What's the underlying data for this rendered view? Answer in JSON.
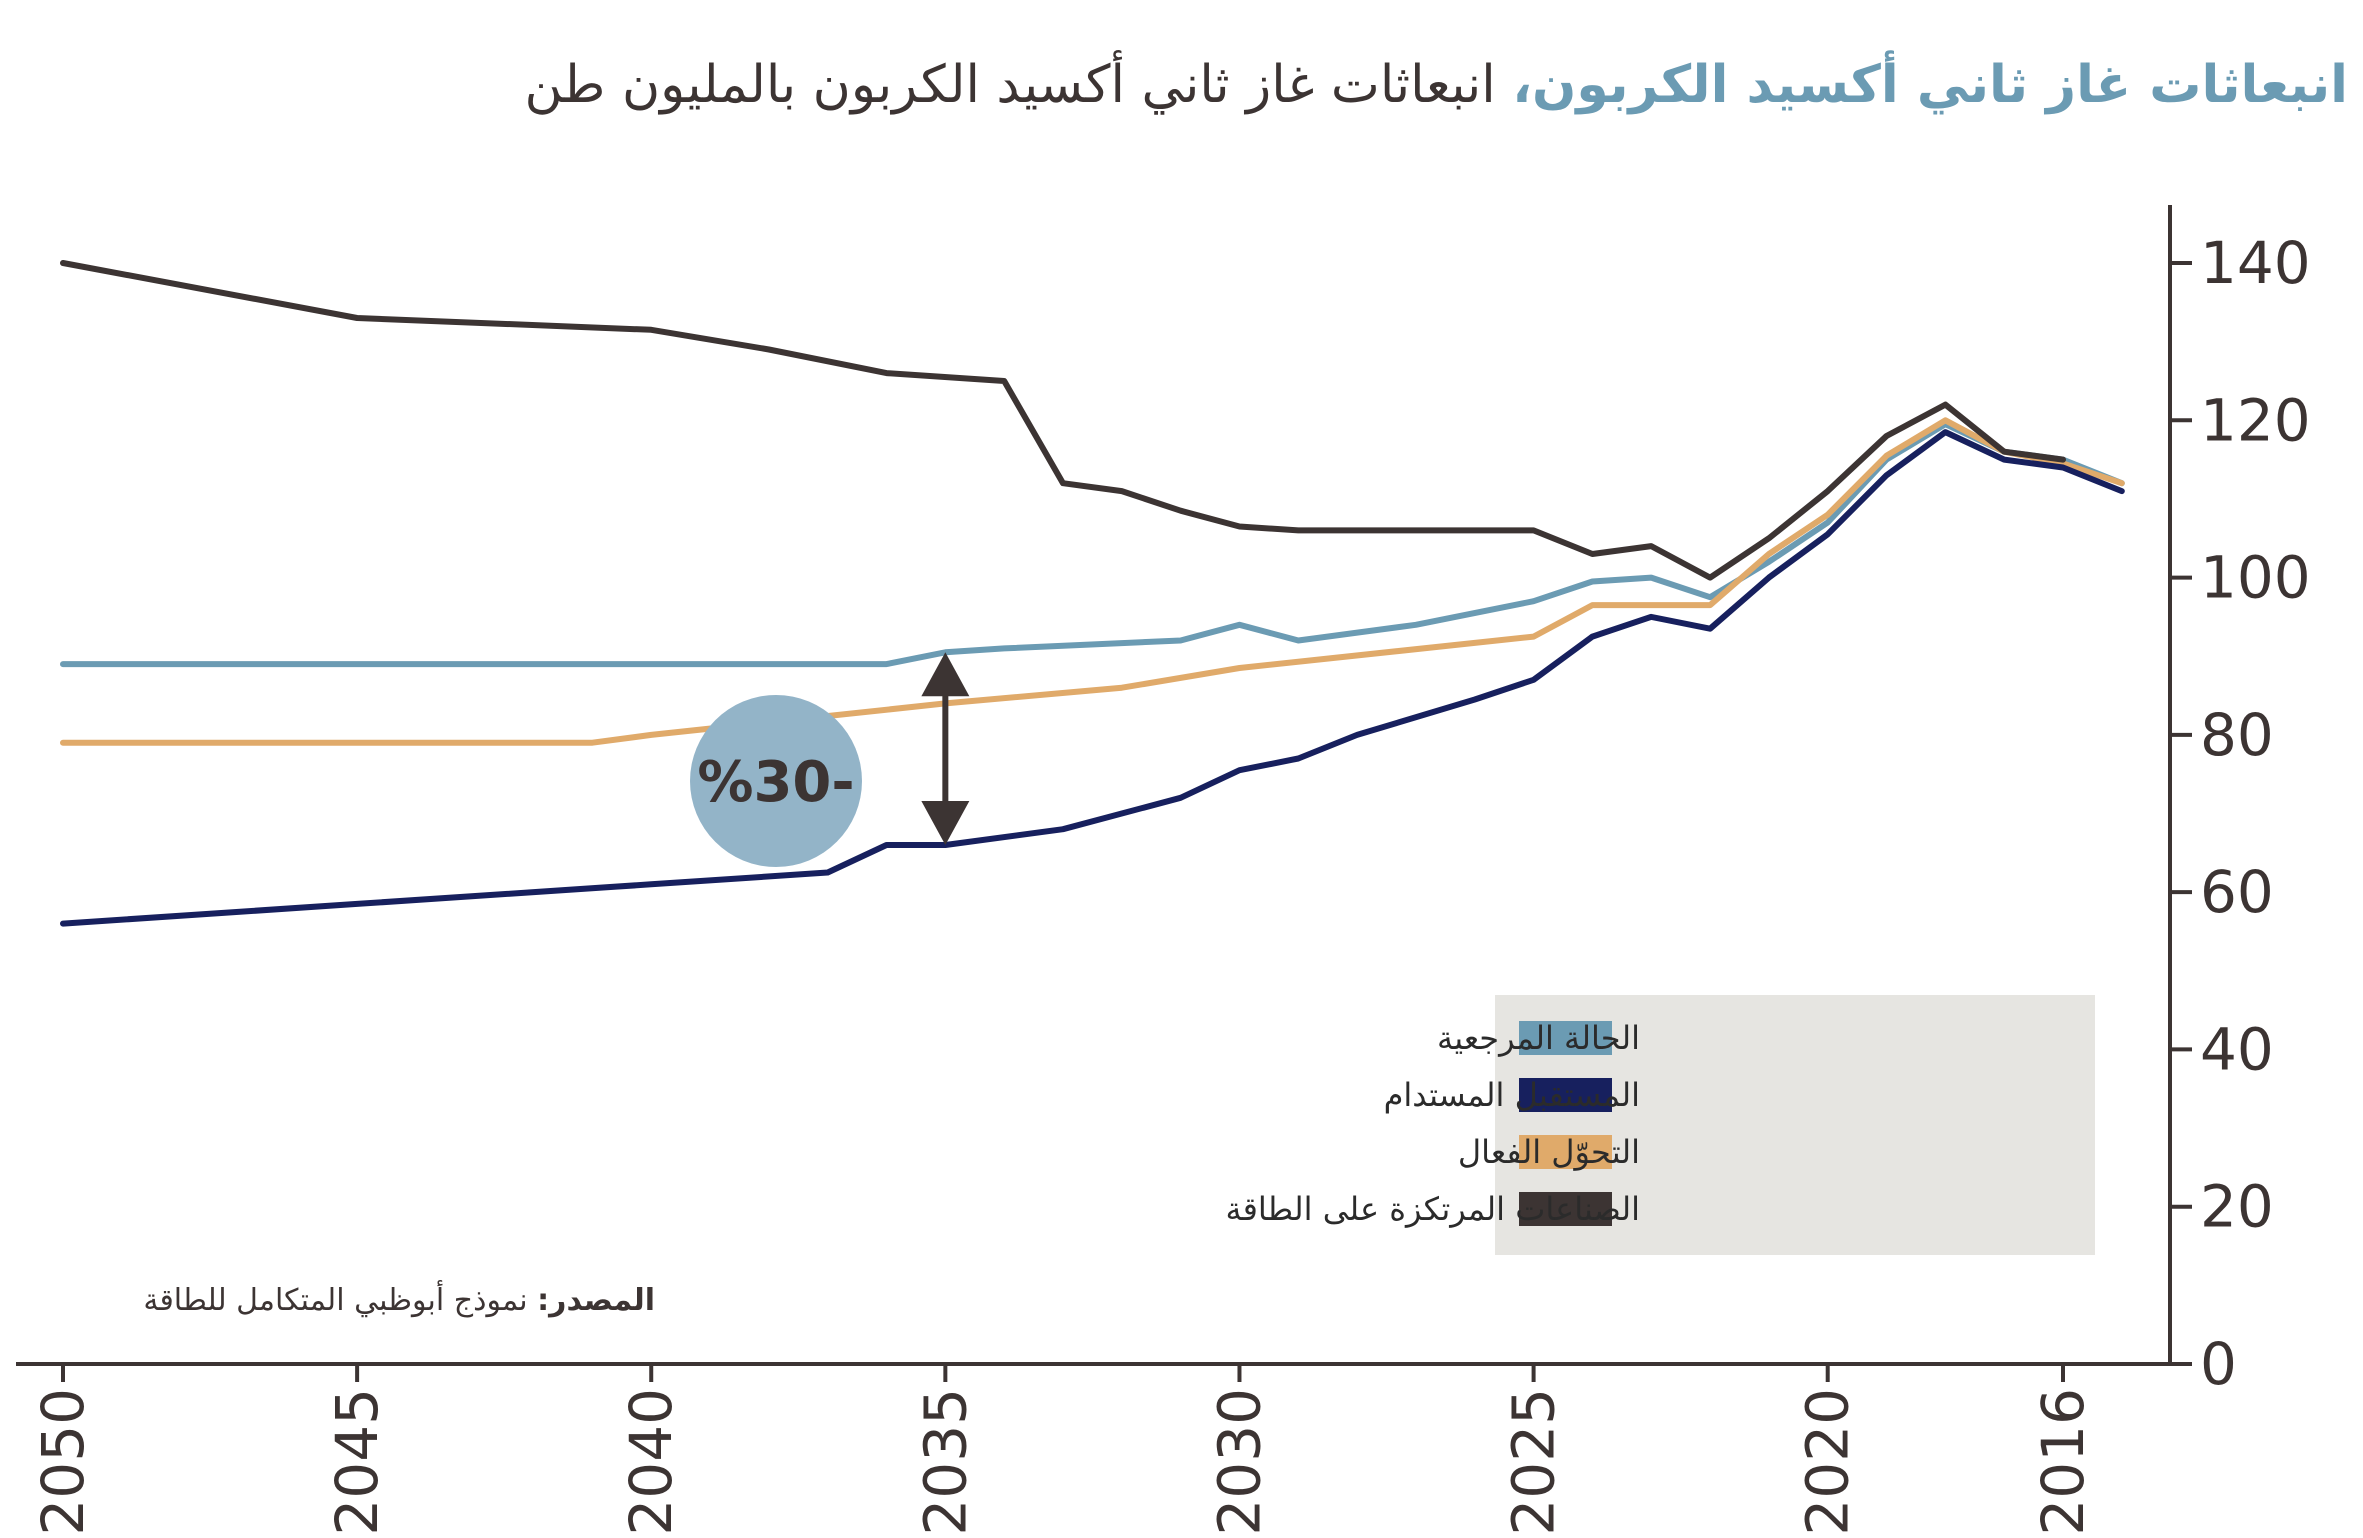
{
  "header": {
    "title_highlight": "انبعاثات غاز ثاني أكسيد الكربون،",
    "title_rest": " انبعاثات غاز ثاني أكسيد الكربون بالمليون طن"
  },
  "source": {
    "label": "المصدر:",
    "text": " نموذج أبوظبي المتكامل للطاقة"
  },
  "annotation": {
    "text": "%30-"
  },
  "colors": {
    "reference": "#6b9bb3",
    "sustainable": "#17205e",
    "transition": "#e0aa6a",
    "energy_intensive": "#3c3433",
    "badge": "#93b4c8",
    "axis": "#3c3433",
    "legend_bg": "#e6e5e1"
  },
  "chart_data": {
    "type": "line",
    "title": "انبعاثات غاز ثاني أكسيد الكربون، انبعاثات غاز ثاني أكسيد الكربون بالمليون طن",
    "x_direction": "reversed (2016 at right, 2050 at left)",
    "y_axis_side": "right",
    "ylim": [
      0,
      140
    ],
    "xlim": [
      2050,
      2016
    ],
    "x_ticks": [
      2050,
      2045,
      2040,
      2035,
      2030,
      2025,
      2020,
      2016
    ],
    "y_ticks": [
      0,
      20,
      40,
      60,
      80,
      100,
      120,
      140
    ],
    "grid": false,
    "legend_position": "bottom-right",
    "series": [
      {
        "name": "الحالة المرجعية",
        "color_key": "reference",
        "points": [
          [
            2015,
            112
          ],
          [
            2016,
            115
          ],
          [
            2017,
            116
          ],
          [
            2018,
            119.5
          ],
          [
            2019,
            115
          ],
          [
            2020,
            107
          ],
          [
            2021,
            102
          ],
          [
            2022,
            97.5
          ],
          [
            2023,
            100
          ],
          [
            2024,
            99.5
          ],
          [
            2025,
            97
          ],
          [
            2027,
            94
          ],
          [
            2029,
            92
          ],
          [
            2030,
            94
          ],
          [
            2031,
            92
          ],
          [
            2034,
            91
          ],
          [
            2035,
            90.5
          ],
          [
            2036,
            89
          ],
          [
            2050,
            89
          ]
        ]
      },
      {
        "name": "المستقبل المستدام",
        "color_key": "sustainable",
        "points": [
          [
            2015,
            111
          ],
          [
            2016,
            114
          ],
          [
            2017,
            115
          ],
          [
            2018,
            118.5
          ],
          [
            2019,
            113
          ],
          [
            2020,
            105.5
          ],
          [
            2021,
            100
          ],
          [
            2022,
            93.5
          ],
          [
            2023,
            95
          ],
          [
            2024,
            92.5
          ],
          [
            2025,
            87
          ],
          [
            2026,
            84.5
          ],
          [
            2028,
            80
          ],
          [
            2029,
            77
          ],
          [
            2030,
            75.5
          ],
          [
            2031,
            72
          ],
          [
            2033,
            68
          ],
          [
            2035,
            66
          ],
          [
            2036,
            66
          ],
          [
            2037,
            62.5
          ],
          [
            2040,
            61
          ],
          [
            2045,
            58.5
          ],
          [
            2050,
            56
          ]
        ]
      },
      {
        "name": "التحوّل الفعال",
        "color_key": "transition",
        "points": [
          [
            2015,
            112
          ],
          [
            2016,
            114.5
          ],
          [
            2017,
            116
          ],
          [
            2018,
            120
          ],
          [
            2019,
            115.5
          ],
          [
            2020,
            108
          ],
          [
            2021,
            103
          ],
          [
            2022,
            96.5
          ],
          [
            2023,
            96.5
          ],
          [
            2024,
            96.5
          ],
          [
            2025,
            92.5
          ],
          [
            2030,
            88.5
          ],
          [
            2032,
            86
          ],
          [
            2035,
            84
          ],
          [
            2040,
            80
          ],
          [
            2041,
            79
          ],
          [
            2050,
            79
          ]
        ]
      },
      {
        "name": "الصناعات المرتكزة على الطاقة",
        "color_key": "energy_intensive",
        "points": [
          [
            2016,
            115
          ],
          [
            2017,
            116
          ],
          [
            2018,
            122
          ],
          [
            2019,
            118
          ],
          [
            2020,
            111
          ],
          [
            2021,
            105
          ],
          [
            2022,
            100
          ],
          [
            2023,
            104
          ],
          [
            2024,
            103
          ],
          [
            2025,
            106
          ],
          [
            2027,
            106
          ],
          [
            2029,
            106
          ],
          [
            2030,
            106.5
          ],
          [
            2031,
            108.5
          ],
          [
            2032,
            111
          ],
          [
            2033,
            112
          ],
          [
            2034,
            125
          ],
          [
            2036,
            126
          ],
          [
            2038,
            129
          ],
          [
            2040,
            131.5
          ],
          [
            2045,
            133
          ],
          [
            2050,
            140
          ]
        ]
      }
    ],
    "annotations": [
      {
        "text": "%30-",
        "x": 2035,
        "from_y": 90.5,
        "to_y": 66
      }
    ]
  }
}
